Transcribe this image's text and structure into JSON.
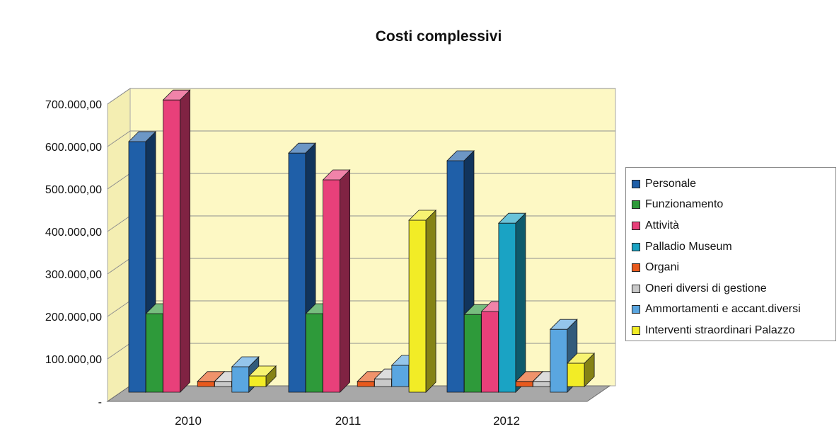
{
  "chart_data": {
    "type": "bar",
    "title": "Costi complessivi",
    "categories": [
      "2010",
      "2011",
      "2012"
    ],
    "y_ticks": [
      "-",
      "100.000,00",
      "200.000,00",
      "300.000,00",
      "400.000,00",
      "500.000,00",
      "600.000,00",
      "700.000,00"
    ],
    "ylim": [
      0,
      700000
    ],
    "grid": true,
    "legend_position": "right",
    "series": [
      {
        "name": "Personale",
        "color": "#1f5fa8",
        "values": [
          590000,
          563000,
          545000
        ]
      },
      {
        "name": "Funzionamento",
        "color": "#2e9a3a",
        "values": [
          185000,
          185000,
          183000
        ]
      },
      {
        "name": "Attività",
        "color": "#e8407a",
        "values": [
          688000,
          500000,
          190000
        ]
      },
      {
        "name": "Palladio Museum",
        "color": "#1aa3c4",
        "values": [
          0,
          0,
          398000
        ]
      },
      {
        "name": "Organi",
        "color": "#e8591c",
        "values": [
          12000,
          12000,
          12000
        ]
      },
      {
        "name": "Oneri diversi di gestione",
        "color": "#c9c9c9",
        "values": [
          12000,
          18000,
          12000
        ]
      },
      {
        "name": "Ammortamenti e accant.diversi",
        "color": "#5aa6e0",
        "values": [
          60000,
          50000,
          148000
        ]
      },
      {
        "name": "Interventi straordinari Palazzo",
        "color": "#f2ec26",
        "values": [
          25000,
          405000,
          55000
        ]
      }
    ]
  }
}
